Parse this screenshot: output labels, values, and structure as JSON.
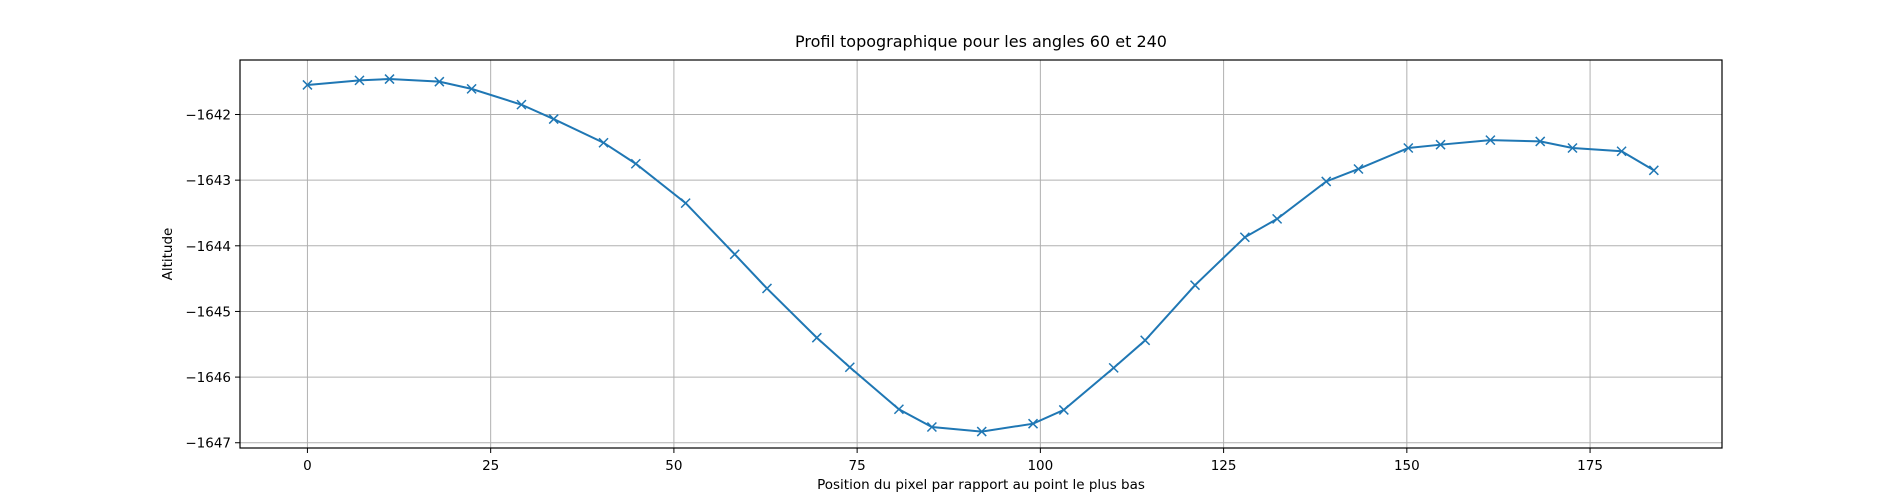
{
  "chart_data": {
    "type": "line",
    "title": "Profil topographique pour les angles 60 et 240",
    "xlabel": "Position du pixel par rapport au point le plus bas",
    "ylabel": "Altitude",
    "xlim": [
      -9.2,
      193
    ],
    "ylim": [
      -1647.08,
      -1641.17
    ],
    "xticks": [
      0,
      25,
      50,
      75,
      100,
      125,
      150,
      175
    ],
    "yticks": [
      -1642,
      -1643,
      -1644,
      -1645,
      -1646,
      -1647
    ],
    "grid": true,
    "marker": "x",
    "color": "#1f77b4",
    "series": [
      {
        "x": [
          0,
          7.1,
          11.2,
          18.0,
          22.4,
          29.2,
          33.6,
          40.4,
          44.8,
          51.6,
          58.3,
          62.7,
          69.5,
          74.0,
          80.7,
          85.2,
          92.0,
          99.0,
          103.2,
          110.0,
          114.3,
          121.1,
          127.9,
          132.3,
          139.0,
          143.4,
          150.2,
          154.6,
          161.4,
          168.2,
          172.6,
          179.3,
          183.7
        ],
        "y": [
          -1641.55,
          -1641.48,
          -1641.46,
          -1641.5,
          -1641.61,
          -1641.85,
          -1642.07,
          -1642.43,
          -1642.75,
          -1643.35,
          -1644.13,
          -1644.65,
          -1645.4,
          -1645.85,
          -1646.49,
          -1646.76,
          -1646.83,
          -1646.71,
          -1646.5,
          -1645.86,
          -1645.44,
          -1644.6,
          -1643.87,
          -1643.59,
          -1643.02,
          -1642.83,
          -1642.51,
          -1642.46,
          -1642.39,
          -1642.41,
          -1642.51,
          -1642.56,
          -1642.85
        ]
      }
    ]
  }
}
